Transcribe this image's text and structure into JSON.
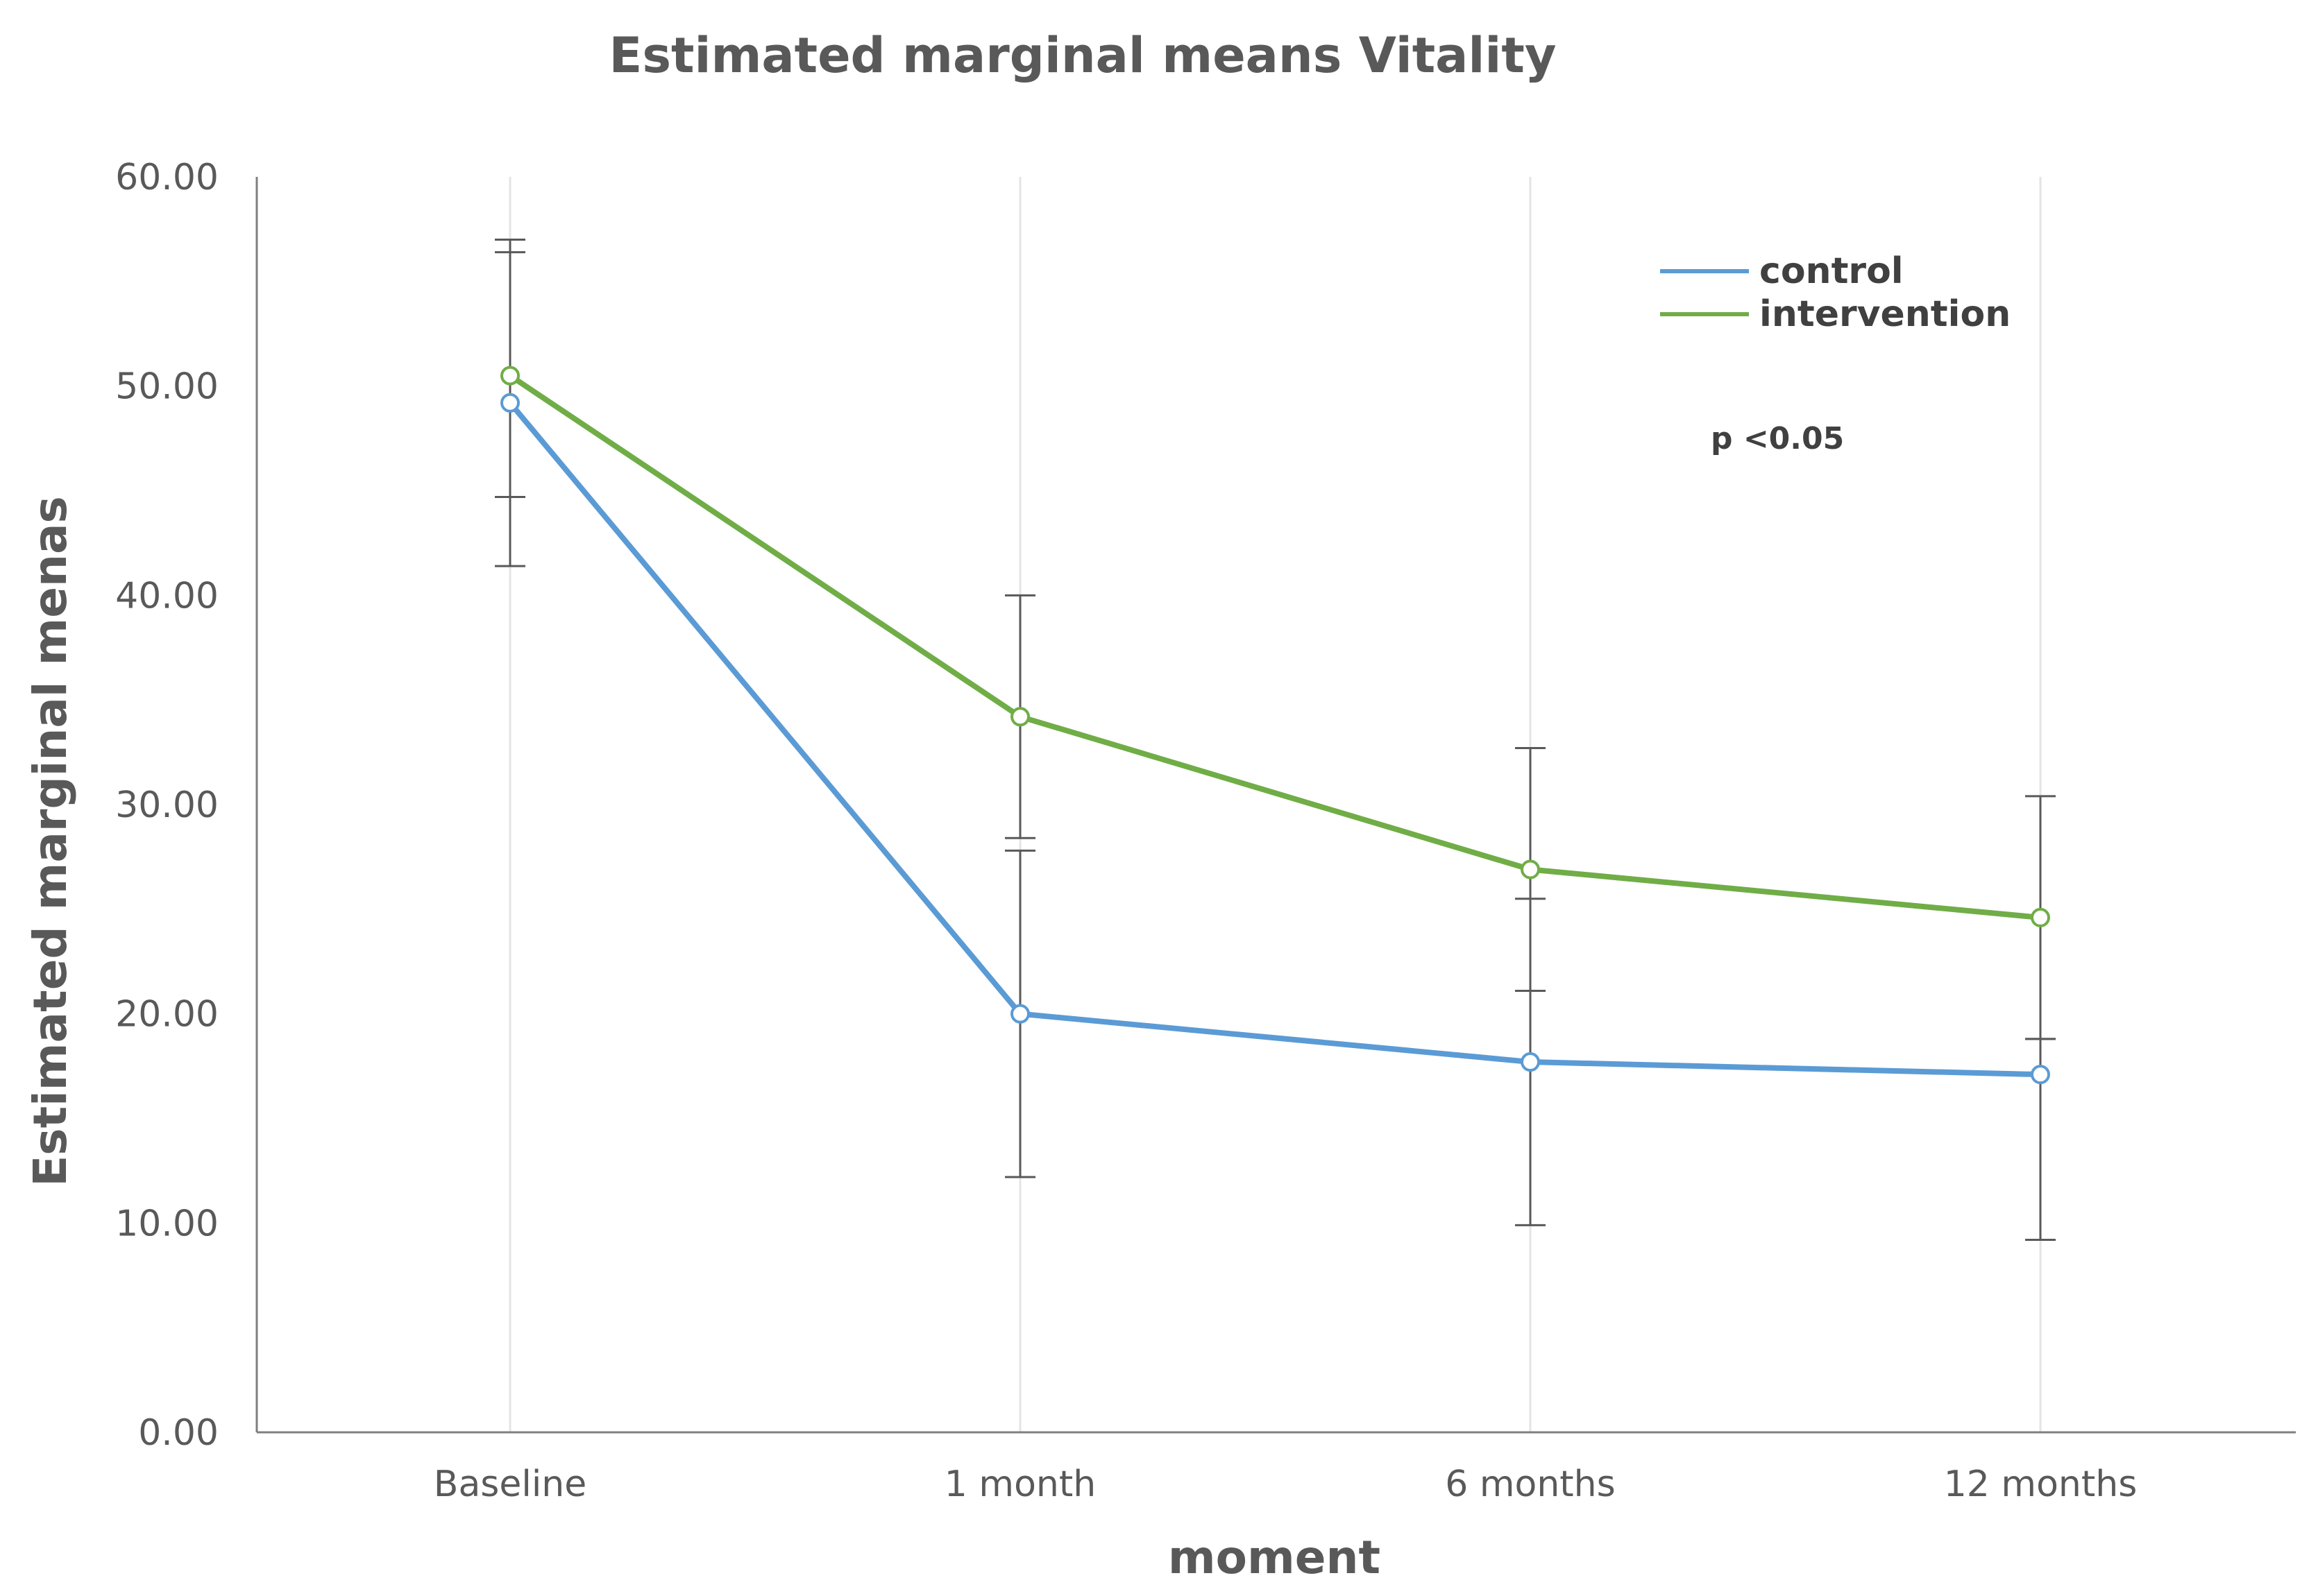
{
  "chart_data": {
    "type": "line",
    "title": "Estimated marginal means Vitality",
    "xlabel": "moment",
    "ylabel": "Estimated marginal menas",
    "categories": [
      "Baseline",
      "1 month",
      "6 months",
      "12 months"
    ],
    "ylim": [
      0,
      60
    ],
    "yticks": [
      0,
      10,
      20,
      30,
      40,
      50,
      60
    ],
    "ytick_labels": [
      "0.00",
      "10.00",
      "20.00",
      "30.00",
      "40.00",
      "50.00",
      "60.00"
    ],
    "grid": "vertical",
    "legend_position": "top-right",
    "annotation": "p <0.05",
    "series": [
      {
        "name": "control",
        "color": "#5b9bd5",
        "values": [
          49.2,
          20.0,
          17.7,
          17.1
        ],
        "error_low": [
          41.4,
          12.2,
          9.9,
          9.2
        ],
        "error_high": [
          57.0,
          27.8,
          25.5,
          18.8
        ]
      },
      {
        "name": "intervention",
        "color": "#70ad47",
        "values": [
          50.5,
          34.2,
          26.9,
          24.6
        ],
        "error_low": [
          44.7,
          28.4,
          21.1,
          18.8
        ],
        "error_high": [
          56.4,
          40.0,
          32.7,
          30.4
        ]
      }
    ]
  }
}
